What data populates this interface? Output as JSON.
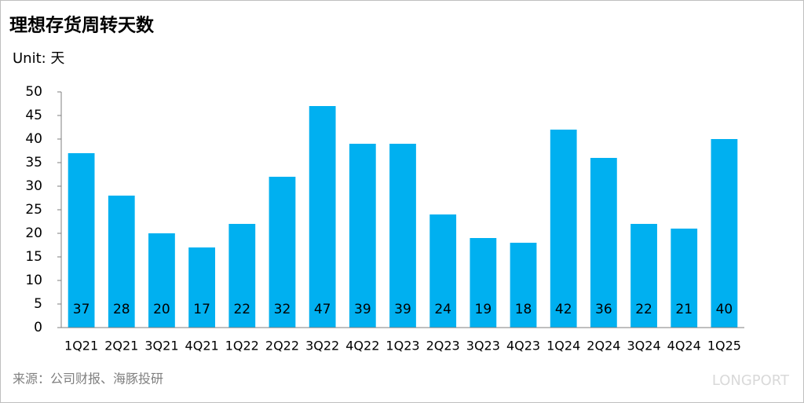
{
  "chart_data": {
    "type": "bar",
    "title": "理想存货周转天数",
    "unit_label": "Unit: 天",
    "source": "来源：公司财报、海豚投研",
    "watermark": "LONGPORT",
    "categories": [
      "1Q21",
      "2Q21",
      "3Q21",
      "4Q21",
      "1Q22",
      "2Q22",
      "3Q22",
      "4Q22",
      "1Q23",
      "2Q23",
      "3Q23",
      "4Q23",
      "1Q24",
      "2Q24",
      "3Q24",
      "4Q24",
      "1Q25"
    ],
    "values": [
      37,
      28,
      20,
      17,
      22,
      32,
      47,
      39,
      39,
      24,
      19,
      18,
      42,
      36,
      22,
      21,
      40
    ],
    "color": "#00b0f0",
    "ylim": [
      0,
      50
    ],
    "yticks": [
      0,
      5,
      10,
      15,
      20,
      25,
      30,
      35,
      40,
      45,
      50
    ],
    "grid": false
  }
}
